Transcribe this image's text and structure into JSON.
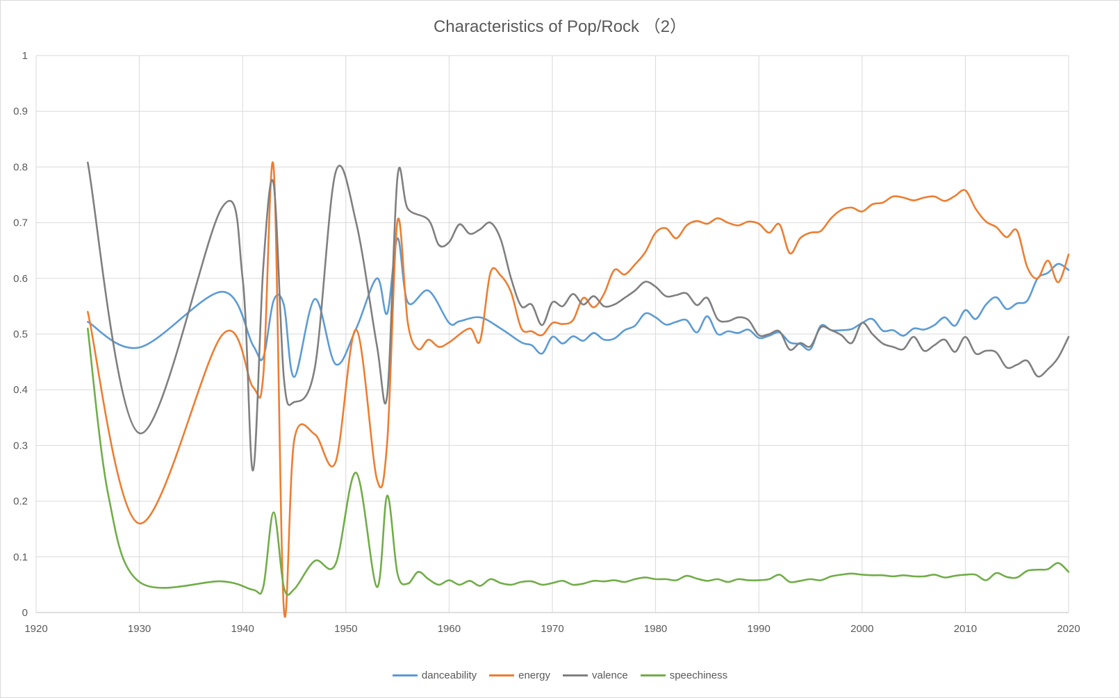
{
  "chart_data": {
    "type": "line",
    "title": "Characteristics of Pop/Rock （2）",
    "xlabel": "",
    "ylabel": "",
    "xlim": [
      1920,
      2020
    ],
    "ylim": [
      0,
      1
    ],
    "x_ticks": [
      "1920",
      "1930",
      "1940",
      "1950",
      "1960",
      "1970",
      "1980",
      "1990",
      "2000",
      "2010",
      "2020"
    ],
    "y_ticks": [
      "0",
      "0.1",
      "0.2",
      "0.3",
      "0.4",
      "0.5",
      "0.6",
      "0.7",
      "0.8",
      "0.9",
      "1"
    ],
    "grid": true,
    "legend_position": "bottom",
    "series": [
      {
        "name": "danceability",
        "color": "#5b9bd5",
        "points": [
          [
            1925,
            0.522
          ],
          [
            1930,
            0.476
          ],
          [
            1938,
            0.576
          ],
          [
            1941,
            0.48
          ],
          [
            1942,
            0.458
          ],
          [
            1943,
            0.56
          ],
          [
            1944,
            0.552
          ],
          [
            1945,
            0.423
          ],
          [
            1947,
            0.563
          ],
          [
            1949,
            0.446
          ],
          [
            1951,
            0.51
          ],
          [
            1953,
            0.6
          ],
          [
            1954,
            0.537
          ],
          [
            1955,
            0.672
          ],
          [
            1956,
            0.557
          ],
          [
            1958,
            0.578
          ],
          [
            1960,
            0.52
          ],
          [
            1961,
            0.523
          ],
          [
            1963,
            0.53
          ],
          [
            1965,
            0.51
          ],
          [
            1967,
            0.485
          ],
          [
            1968,
            0.48
          ],
          [
            1969,
            0.465
          ],
          [
            1970,
            0.495
          ],
          [
            1971,
            0.483
          ],
          [
            1972,
            0.496
          ],
          [
            1973,
            0.488
          ],
          [
            1974,
            0.502
          ],
          [
            1975,
            0.49
          ],
          [
            1976,
            0.492
          ],
          [
            1977,
            0.507
          ],
          [
            1978,
            0.515
          ],
          [
            1979,
            0.537
          ],
          [
            1980,
            0.53
          ],
          [
            1981,
            0.517
          ],
          [
            1982,
            0.522
          ],
          [
            1983,
            0.525
          ],
          [
            1984,
            0.503
          ],
          [
            1985,
            0.532
          ],
          [
            1986,
            0.5
          ],
          [
            1987,
            0.505
          ],
          [
            1988,
            0.502
          ],
          [
            1989,
            0.508
          ],
          [
            1990,
            0.493
          ],
          [
            1991,
            0.497
          ],
          [
            1992,
            0.503
          ],
          [
            1993,
            0.485
          ],
          [
            1994,
            0.482
          ],
          [
            1995,
            0.473
          ],
          [
            1996,
            0.515
          ],
          [
            1997,
            0.507
          ],
          [
            1998,
            0.507
          ],
          [
            1999,
            0.509
          ],
          [
            2000,
            0.52
          ],
          [
            2001,
            0.527
          ],
          [
            2002,
            0.506
          ],
          [
            2003,
            0.507
          ],
          [
            2004,
            0.497
          ],
          [
            2005,
            0.51
          ],
          [
            2006,
            0.508
          ],
          [
            2007,
            0.516
          ],
          [
            2008,
            0.53
          ],
          [
            2009,
            0.515
          ],
          [
            2010,
            0.543
          ],
          [
            2011,
            0.527
          ],
          [
            2012,
            0.553
          ],
          [
            2013,
            0.566
          ],
          [
            2014,
            0.545
          ],
          [
            2015,
            0.555
          ],
          [
            2016,
            0.56
          ],
          [
            2017,
            0.6
          ],
          [
            2018,
            0.61
          ],
          [
            2019,
            0.626
          ],
          [
            2020,
            0.615
          ]
        ]
      },
      {
        "name": "energy",
        "color": "#ed7d31",
        "points": [
          [
            1925,
            0.54
          ],
          [
            1930,
            0.16
          ],
          [
            1938,
            0.498
          ],
          [
            1941,
            0.405
          ],
          [
            1942,
            0.425
          ],
          [
            1943,
            0.8
          ],
          [
            1944,
            0.005
          ],
          [
            1945,
            0.31
          ],
          [
            1947,
            0.32
          ],
          [
            1949,
            0.27
          ],
          [
            1951,
            0.508
          ],
          [
            1953,
            0.24
          ],
          [
            1954,
            0.305
          ],
          [
            1955,
            0.703
          ],
          [
            1956,
            0.52
          ],
          [
            1957,
            0.473
          ],
          [
            1958,
            0.49
          ],
          [
            1959,
            0.477
          ],
          [
            1960,
            0.485
          ],
          [
            1962,
            0.51
          ],
          [
            1963,
            0.488
          ],
          [
            1964,
            0.61
          ],
          [
            1965,
            0.605
          ],
          [
            1966,
            0.575
          ],
          [
            1967,
            0.51
          ],
          [
            1968,
            0.505
          ],
          [
            1969,
            0.498
          ],
          [
            1970,
            0.52
          ],
          [
            1971,
            0.518
          ],
          [
            1972,
            0.525
          ],
          [
            1973,
            0.565
          ],
          [
            1974,
            0.548
          ],
          [
            1975,
            0.572
          ],
          [
            1976,
            0.615
          ],
          [
            1977,
            0.607
          ],
          [
            1978,
            0.625
          ],
          [
            1979,
            0.647
          ],
          [
            1980,
            0.682
          ],
          [
            1981,
            0.69
          ],
          [
            1982,
            0.672
          ],
          [
            1983,
            0.695
          ],
          [
            1984,
            0.703
          ],
          [
            1985,
            0.698
          ],
          [
            1986,
            0.708
          ],
          [
            1987,
            0.7
          ],
          [
            1988,
            0.695
          ],
          [
            1989,
            0.702
          ],
          [
            1990,
            0.698
          ],
          [
            1991,
            0.682
          ],
          [
            1992,
            0.697
          ],
          [
            1993,
            0.645
          ],
          [
            1994,
            0.672
          ],
          [
            1995,
            0.682
          ],
          [
            1996,
            0.685
          ],
          [
            1997,
            0.708
          ],
          [
            1998,
            0.723
          ],
          [
            1999,
            0.727
          ],
          [
            2000,
            0.72
          ],
          [
            2001,
            0.733
          ],
          [
            2002,
            0.736
          ],
          [
            2003,
            0.747
          ],
          [
            2004,
            0.745
          ],
          [
            2005,
            0.74
          ],
          [
            2006,
            0.745
          ],
          [
            2007,
            0.747
          ],
          [
            2008,
            0.739
          ],
          [
            2009,
            0.748
          ],
          [
            2010,
            0.758
          ],
          [
            2011,
            0.725
          ],
          [
            2012,
            0.702
          ],
          [
            2013,
            0.692
          ],
          [
            2014,
            0.674
          ],
          [
            2015,
            0.686
          ],
          [
            2016,
            0.62
          ],
          [
            2017,
            0.6
          ],
          [
            2018,
            0.632
          ],
          [
            2019,
            0.593
          ],
          [
            2020,
            0.643
          ]
        ]
      },
      {
        "name": "valence",
        "color": "#7f7f7f",
        "points": [
          [
            1925,
            0.808
          ],
          [
            1930,
            0.322
          ],
          [
            1938,
            0.727
          ],
          [
            1940,
            0.6
          ],
          [
            1941,
            0.255
          ],
          [
            1942,
            0.62
          ],
          [
            1943,
            0.77
          ],
          [
            1944,
            0.42
          ],
          [
            1945,
            0.378
          ],
          [
            1947,
            0.44
          ],
          [
            1949,
            0.79
          ],
          [
            1951,
            0.7
          ],
          [
            1953,
            0.48
          ],
          [
            1954,
            0.39
          ],
          [
            1955,
            0.782
          ],
          [
            1956,
            0.725
          ],
          [
            1958,
            0.705
          ],
          [
            1959,
            0.66
          ],
          [
            1960,
            0.665
          ],
          [
            1961,
            0.697
          ],
          [
            1962,
            0.68
          ],
          [
            1963,
            0.688
          ],
          [
            1964,
            0.7
          ],
          [
            1965,
            0.67
          ],
          [
            1966,
            0.6
          ],
          [
            1967,
            0.55
          ],
          [
            1968,
            0.553
          ],
          [
            1969,
            0.516
          ],
          [
            1970,
            0.557
          ],
          [
            1971,
            0.55
          ],
          [
            1972,
            0.572
          ],
          [
            1973,
            0.553
          ],
          [
            1974,
            0.568
          ],
          [
            1975,
            0.55
          ],
          [
            1976,
            0.553
          ],
          [
            1977,
            0.565
          ],
          [
            1978,
            0.578
          ],
          [
            1979,
            0.594
          ],
          [
            1980,
            0.585
          ],
          [
            1981,
            0.568
          ],
          [
            1982,
            0.57
          ],
          [
            1983,
            0.573
          ],
          [
            1984,
            0.552
          ],
          [
            1985,
            0.565
          ],
          [
            1986,
            0.527
          ],
          [
            1987,
            0.523
          ],
          [
            1988,
            0.53
          ],
          [
            1989,
            0.525
          ],
          [
            1990,
            0.498
          ],
          [
            1991,
            0.5
          ],
          [
            1992,
            0.505
          ],
          [
            1993,
            0.472
          ],
          [
            1994,
            0.484
          ],
          [
            1995,
            0.478
          ],
          [
            1996,
            0.512
          ],
          [
            1997,
            0.507
          ],
          [
            1998,
            0.498
          ],
          [
            1999,
            0.484
          ],
          [
            2000,
            0.52
          ],
          [
            2001,
            0.5
          ],
          [
            2002,
            0.483
          ],
          [
            2003,
            0.477
          ],
          [
            2004,
            0.473
          ],
          [
            2005,
            0.495
          ],
          [
            2006,
            0.47
          ],
          [
            2007,
            0.48
          ],
          [
            2008,
            0.49
          ],
          [
            2009,
            0.468
          ],
          [
            2010,
            0.495
          ],
          [
            2011,
            0.465
          ],
          [
            2012,
            0.47
          ],
          [
            2013,
            0.467
          ],
          [
            2014,
            0.44
          ],
          [
            2015,
            0.445
          ],
          [
            2016,
            0.452
          ],
          [
            2017,
            0.424
          ],
          [
            2018,
            0.437
          ],
          [
            2019,
            0.458
          ],
          [
            2020,
            0.495
          ]
        ]
      },
      {
        "name": "speechiness",
        "color": "#70ad47",
        "points": [
          [
            1925,
            0.51
          ],
          [
            1927,
            0.21
          ],
          [
            1930,
            0.055
          ],
          [
            1938,
            0.056
          ],
          [
            1941,
            0.041
          ],
          [
            1942,
            0.046
          ],
          [
            1943,
            0.18
          ],
          [
            1944,
            0.045
          ],
          [
            1945,
            0.042
          ],
          [
            1947,
            0.093
          ],
          [
            1949,
            0.087
          ],
          [
            1951,
            0.251
          ],
          [
            1953,
            0.046
          ],
          [
            1954,
            0.21
          ],
          [
            1955,
            0.07
          ],
          [
            1956,
            0.052
          ],
          [
            1957,
            0.073
          ],
          [
            1958,
            0.06
          ],
          [
            1959,
            0.05
          ],
          [
            1960,
            0.058
          ],
          [
            1961,
            0.05
          ],
          [
            1962,
            0.057
          ],
          [
            1963,
            0.048
          ],
          [
            1964,
            0.06
          ],
          [
            1965,
            0.053
          ],
          [
            1966,
            0.05
          ],
          [
            1967,
            0.055
          ],
          [
            1968,
            0.056
          ],
          [
            1969,
            0.05
          ],
          [
            1970,
            0.053
          ],
          [
            1971,
            0.057
          ],
          [
            1972,
            0.05
          ],
          [
            1973,
            0.052
          ],
          [
            1974,
            0.057
          ],
          [
            1975,
            0.056
          ],
          [
            1976,
            0.058
          ],
          [
            1977,
            0.055
          ],
          [
            1978,
            0.06
          ],
          [
            1979,
            0.063
          ],
          [
            1980,
            0.06
          ],
          [
            1981,
            0.06
          ],
          [
            1982,
            0.058
          ],
          [
            1983,
            0.066
          ],
          [
            1984,
            0.061
          ],
          [
            1985,
            0.057
          ],
          [
            1986,
            0.06
          ],
          [
            1987,
            0.055
          ],
          [
            1988,
            0.06
          ],
          [
            1989,
            0.058
          ],
          [
            1990,
            0.058
          ],
          [
            1991,
            0.06
          ],
          [
            1992,
            0.068
          ],
          [
            1993,
            0.055
          ],
          [
            1994,
            0.057
          ],
          [
            1995,
            0.06
          ],
          [
            1996,
            0.058
          ],
          [
            1997,
            0.065
          ],
          [
            1998,
            0.068
          ],
          [
            1999,
            0.07
          ],
          [
            2000,
            0.068
          ],
          [
            2001,
            0.067
          ],
          [
            2002,
            0.067
          ],
          [
            2003,
            0.065
          ],
          [
            2004,
            0.067
          ],
          [
            2005,
            0.065
          ],
          [
            2006,
            0.065
          ],
          [
            2007,
            0.068
          ],
          [
            2008,
            0.063
          ],
          [
            2009,
            0.066
          ],
          [
            2010,
            0.068
          ],
          [
            2011,
            0.068
          ],
          [
            2012,
            0.058
          ],
          [
            2013,
            0.071
          ],
          [
            2014,
            0.064
          ],
          [
            2015,
            0.063
          ],
          [
            2016,
            0.075
          ],
          [
            2017,
            0.077
          ],
          [
            2018,
            0.078
          ],
          [
            2019,
            0.089
          ],
          [
            2020,
            0.073
          ]
        ]
      }
    ]
  }
}
